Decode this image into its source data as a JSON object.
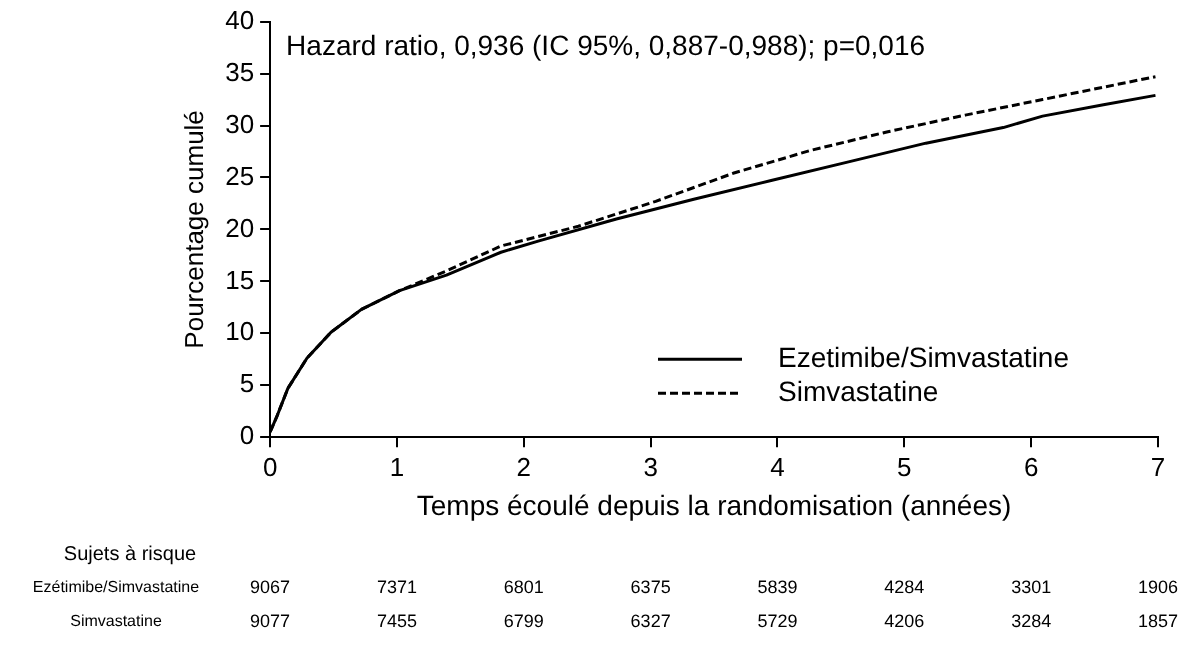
{
  "chart_data": {
    "type": "line",
    "xlabel": "Temps écoulé depuis la randomisation (années)",
    "ylabel": "Pourcentage cumulé",
    "xlim": [
      0,
      7
    ],
    "xticks": [
      0,
      1,
      2,
      3,
      4,
      5,
      6,
      7
    ],
    "ylim": [
      0,
      40
    ],
    "yticks": [
      0,
      5,
      10,
      15,
      20,
      25,
      30,
      35,
      40
    ],
    "grid": false,
    "legend": "bottom right",
    "marker": "none",
    "annotations": [
      "Hazard ratio, 0,936 (IC 95%, 0,887-0,988); p=0,016",
      "Sujets à risque",
      "Ezétimibe/Simvastatine",
      "9067",
      "7371",
      "6801",
      "6375",
      "5839",
      "4284",
      "3301",
      "1906",
      "Simvastatine",
      "9077",
      "7455",
      "6799",
      "6327",
      "5729",
      "4206",
      "3284",
      "1857"
    ],
    "series": [
      {
        "name": "Ezetimibe/Simvastatine",
        "color": "#000000",
        "line_style": "solid",
        "x": [
          0,
          0.05,
          0.14,
          0.29,
          0.48,
          0.72,
          1.02,
          1.39,
          1.82,
          2.12,
          2.73,
          3.34,
          3.95,
          4.56,
          5.17,
          5.78,
          6.09,
          6.57,
          6.98
        ],
        "values": [
          0.5,
          1.9,
          4.7,
          7.6,
          10.1,
          12.3,
          14.1,
          15.6,
          17.8,
          18.9,
          21.0,
          22.9,
          24.7,
          26.5,
          28.3,
          29.8,
          30.9,
          32.0,
          32.9
        ]
      },
      {
        "name": "Simvastatine",
        "color": "#000000",
        "line_style": "dashed",
        "x": [
          0,
          0.05,
          0.14,
          0.29,
          0.48,
          0.72,
          1.02,
          1.39,
          1.82,
          2.43,
          3.04,
          3.65,
          4.26,
          4.87,
          5.48,
          6.09,
          6.98
        ],
        "values": [
          0.5,
          1.9,
          4.7,
          7.6,
          10.1,
          12.3,
          14.1,
          16.0,
          18.4,
          20.3,
          22.7,
          25.4,
          27.6,
          29.4,
          31.0,
          32.5,
          34.7
        ]
      }
    ]
  }
}
